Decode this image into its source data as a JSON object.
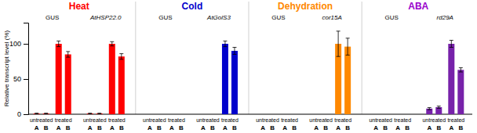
{
  "chart_data": {
    "type": "bar",
    "ylabel": "Relative transcript level (%)",
    "categories": [
      "A",
      "B",
      "A",
      "B",
      "A",
      "B",
      "A",
      "B",
      "A",
      "B",
      "A",
      "B",
      "A",
      "B",
      "A",
      "B",
      "A",
      "B",
      "A",
      "B",
      "A",
      "B",
      "A",
      "B",
      "A",
      "B",
      "A",
      "B",
      "A",
      "B",
      "A",
      "B"
    ],
    "values": [
      1,
      1,
      100,
      85,
      1,
      1,
      100,
      82,
      0,
      0,
      0,
      0,
      0,
      0,
      100,
      90,
      0,
      0,
      0,
      0,
      0,
      0,
      100,
      96,
      0,
      0,
      0,
      0,
      8,
      10,
      100,
      63
    ],
    "errors": [
      0.5,
      0.5,
      4,
      4,
      0.5,
      0.5,
      3,
      4,
      0,
      0,
      0,
      0,
      0,
      0,
      4,
      5,
      0,
      0,
      0,
      0,
      0,
      0,
      18,
      12,
      0,
      0,
      0,
      0,
      1.5,
      1.5,
      5,
      3
    ],
    "colors": [
      "#FF0000",
      "#FF0000",
      "#FF0000",
      "#FF0000",
      "#FF0000",
      "#FF0000",
      "#FF0000",
      "#FF0000",
      "#0000CC",
      "#0000CC",
      "#0000CC",
      "#0000CC",
      "#0000CC",
      "#0000CC",
      "#0000CC",
      "#0000CC",
      "#FF8800",
      "#FF8800",
      "#FF8800",
      "#FF8800",
      "#FF8800",
      "#FF8800",
      "#FF8800",
      "#FF8800",
      "#226622",
      "#226622",
      "#226622",
      "#226622",
      "#7722AA",
      "#7722AA",
      "#7722AA",
      "#7722AA"
    ],
    "condition_labels": [
      "untreated",
      "treated",
      "untreated",
      "treated",
      "untreated",
      "treated",
      "untreated",
      "treated",
      "untreated",
      "treated",
      "untreated",
      "treated",
      "untreated",
      "treated",
      "untreated",
      "treated"
    ],
    "gene_labels": [
      "GUS",
      "AtHSP22.0",
      "GUS",
      "AtGolS3",
      "GUS",
      "cor15A",
      "GUS",
      "rd29A"
    ],
    "section_labels": [
      "Heat",
      "Cold",
      "Dehydration",
      "ABA"
    ],
    "section_colors": [
      "#FF0000",
      "#0000CC",
      "#FF8800",
      "#9900CC"
    ],
    "ylim": [
      0,
      130
    ],
    "yticks": [
      0,
      50,
      100
    ]
  }
}
